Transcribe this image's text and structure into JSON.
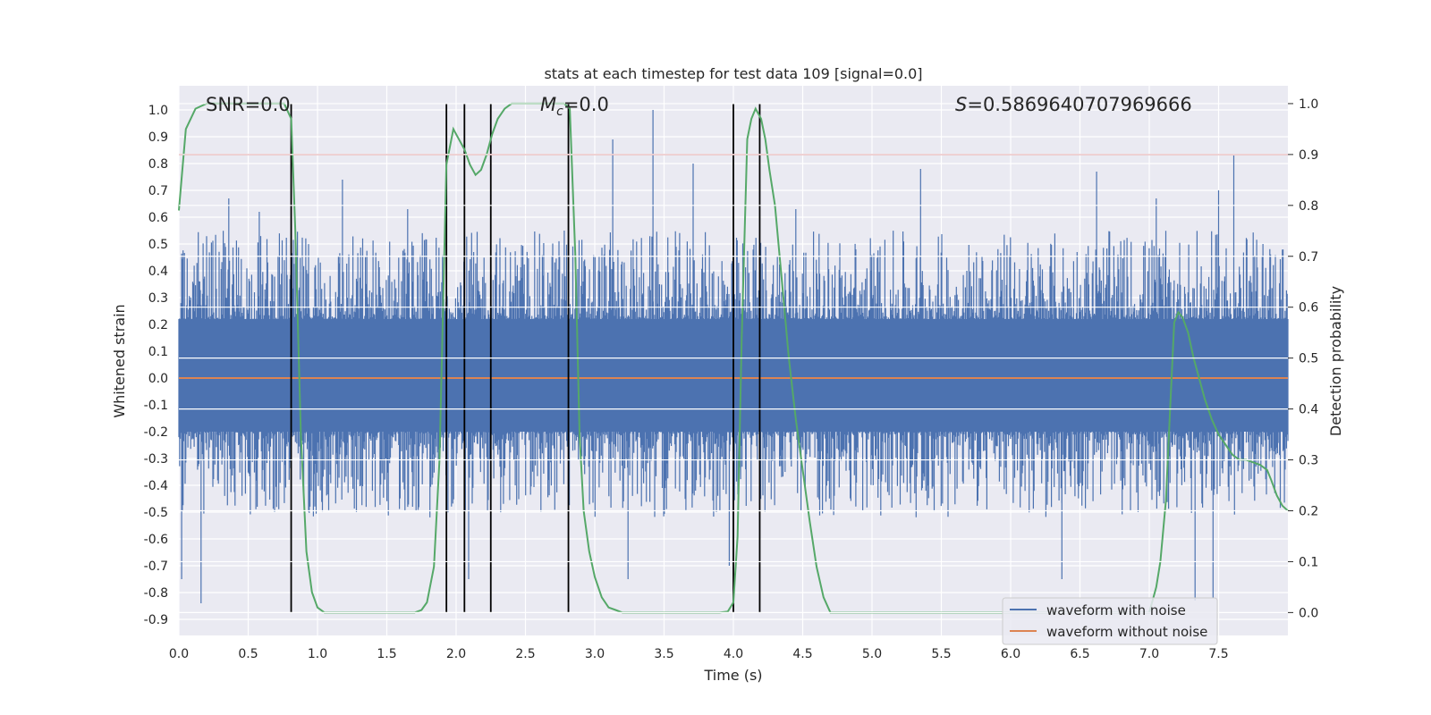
{
  "chart_data": {
    "type": "line",
    "title": "stats at each timestep for test data 109 [signal=0.0]",
    "xlabel": "Time (s)",
    "ylabel_left": "Whitened strain",
    "ylabel_right": "Detection probability",
    "xlim": [
      0.0,
      8.0
    ],
    "ylim_left": [
      -0.96,
      1.09
    ],
    "ylim_right": [
      -0.045,
      1.035
    ],
    "xticks": [
      "0.0",
      "0.5",
      "1.0",
      "1.5",
      "2.0",
      "2.5",
      "3.0",
      "3.5",
      "4.0",
      "4.5",
      "5.0",
      "5.5",
      "6.0",
      "6.5",
      "7.0",
      "7.5"
    ],
    "yticks_left": [
      "1.0",
      "0.9",
      "0.8",
      "0.7",
      "0.6",
      "0.5",
      "0.4",
      "0.3",
      "0.2",
      "0.1",
      "0.0",
      "-0.1",
      "-0.2",
      "-0.3",
      "-0.4",
      "-0.5",
      "-0.6",
      "-0.7",
      "-0.8",
      "-0.9"
    ],
    "yticks_right": [
      "1.0",
      "0.9",
      "0.8",
      "0.7",
      "0.6",
      "0.5",
      "0.4",
      "0.3",
      "0.2",
      "0.1",
      "0.0"
    ],
    "annotations": {
      "snr": "SNR=0.0",
      "mc_symbol": "M",
      "mc_sub": "c",
      "mc_value": "=0.0",
      "s_symbol": "S",
      "s_value": "=0.5869640707969666"
    },
    "legend": {
      "placement": "lower-right",
      "entries": [
        {
          "name": "waveform with noise",
          "color": "#4c72b0"
        },
        {
          "name": "waveform without noise",
          "color": "#dd8452"
        }
      ]
    },
    "grid": true,
    "threshold_right": 0.9,
    "vertical_lines_x": [
      0.81,
      1.93,
      2.06,
      2.25,
      2.81,
      4.0,
      4.19
    ],
    "noise_envelope": {
      "note": "waveform with noise is a dense noise trace filling roughly -0.5 to 0.55 with spikes",
      "spikes": [
        {
          "x": 0.02,
          "y": -0.75
        },
        {
          "x": 0.16,
          "y": -0.84
        },
        {
          "x": 0.36,
          "y": 0.67
        },
        {
          "x": 0.58,
          "y": 0.62
        },
        {
          "x": 1.18,
          "y": 0.74
        },
        {
          "x": 1.65,
          "y": 0.63
        },
        {
          "x": 1.93,
          "y": 0.55
        },
        {
          "x": 2.09,
          "y": -0.75
        },
        {
          "x": 2.78,
          "y": 0.55
        },
        {
          "x": 3.13,
          "y": 0.89
        },
        {
          "x": 3.24,
          "y": -0.75
        },
        {
          "x": 3.42,
          "y": 1.0
        },
        {
          "x": 3.71,
          "y": 0.8
        },
        {
          "x": 3.97,
          "y": -0.7
        },
        {
          "x": 4.45,
          "y": 0.63
        },
        {
          "x": 5.35,
          "y": 0.78
        },
        {
          "x": 6.37,
          "y": -0.75
        },
        {
          "x": 6.62,
          "y": 0.77
        },
        {
          "x": 7.05,
          "y": 0.67
        },
        {
          "x": 7.33,
          "y": -0.83
        },
        {
          "x": 7.46,
          "y": -0.82
        },
        {
          "x": 7.61,
          "y": 0.83
        },
        {
          "x": 7.5,
          "y": 0.7
        }
      ]
    },
    "series": [
      {
        "name": "waveform without noise",
        "axis": "left",
        "color": "#dd8452",
        "x": [
          0.0,
          8.0
        ],
        "y": [
          0.0,
          0.0
        ]
      },
      {
        "axis": "right",
        "color": "#55a868",
        "x": [
          0.0,
          0.05,
          0.12,
          0.2,
          0.3,
          0.4,
          0.5,
          0.6,
          0.7,
          0.76,
          0.81,
          0.84,
          0.88,
          0.92,
          0.96,
          1.0,
          1.05,
          1.1,
          1.2,
          1.3,
          1.4,
          1.5,
          1.6,
          1.7,
          1.75,
          1.79,
          1.84,
          1.88,
          1.93,
          1.98,
          2.02,
          2.06,
          2.1,
          2.14,
          2.18,
          2.22,
          2.26,
          2.3,
          2.35,
          2.4,
          2.45,
          2.5,
          2.6,
          2.7,
          2.78,
          2.82,
          2.86,
          2.89,
          2.92,
          2.96,
          3.0,
          3.05,
          3.1,
          3.15,
          3.2,
          3.3,
          3.5,
          3.7,
          3.9,
          3.96,
          4.0,
          4.03,
          4.06,
          4.1,
          4.13,
          4.16,
          4.2,
          4.23,
          4.26,
          4.3,
          4.35,
          4.4,
          4.45,
          4.5,
          4.55,
          4.6,
          4.65,
          4.7,
          4.8,
          5.0,
          5.5,
          6.0,
          6.5,
          7.0,
          7.05,
          7.08,
          7.12,
          7.15,
          7.18,
          7.21,
          7.24,
          7.28,
          7.32,
          7.36,
          7.4,
          7.45,
          7.5,
          7.55,
          7.6,
          7.65,
          7.7,
          7.8,
          7.85,
          7.88,
          7.92,
          7.96,
          8.0
        ],
        "y": [
          0.79,
          0.95,
          0.99,
          1.0,
          1.0,
          1.0,
          1.0,
          1.0,
          1.0,
          1.0,
          0.97,
          0.75,
          0.35,
          0.12,
          0.04,
          0.01,
          0.0,
          0.0,
          0.0,
          0.0,
          0.0,
          0.0,
          0.0,
          0.0,
          0.005,
          0.02,
          0.09,
          0.3,
          0.88,
          0.95,
          0.93,
          0.91,
          0.88,
          0.86,
          0.87,
          0.9,
          0.94,
          0.97,
          0.99,
          1.0,
          1.0,
          1.0,
          1.0,
          1.0,
          1.0,
          0.99,
          0.7,
          0.35,
          0.2,
          0.12,
          0.07,
          0.03,
          0.01,
          0.005,
          0.0,
          0.0,
          0.0,
          0.0,
          0.0,
          0.002,
          0.02,
          0.15,
          0.54,
          0.93,
          0.97,
          0.99,
          0.97,
          0.93,
          0.87,
          0.8,
          0.65,
          0.5,
          0.38,
          0.28,
          0.18,
          0.09,
          0.03,
          0.0,
          0.0,
          0.0,
          0.0,
          0.0,
          0.0,
          0.0,
          0.05,
          0.1,
          0.22,
          0.4,
          0.57,
          0.59,
          0.58,
          0.55,
          0.5,
          0.46,
          0.42,
          0.38,
          0.35,
          0.33,
          0.31,
          0.3,
          0.3,
          0.29,
          0.28,
          0.26,
          0.23,
          0.21,
          0.2
        ]
      }
    ]
  }
}
